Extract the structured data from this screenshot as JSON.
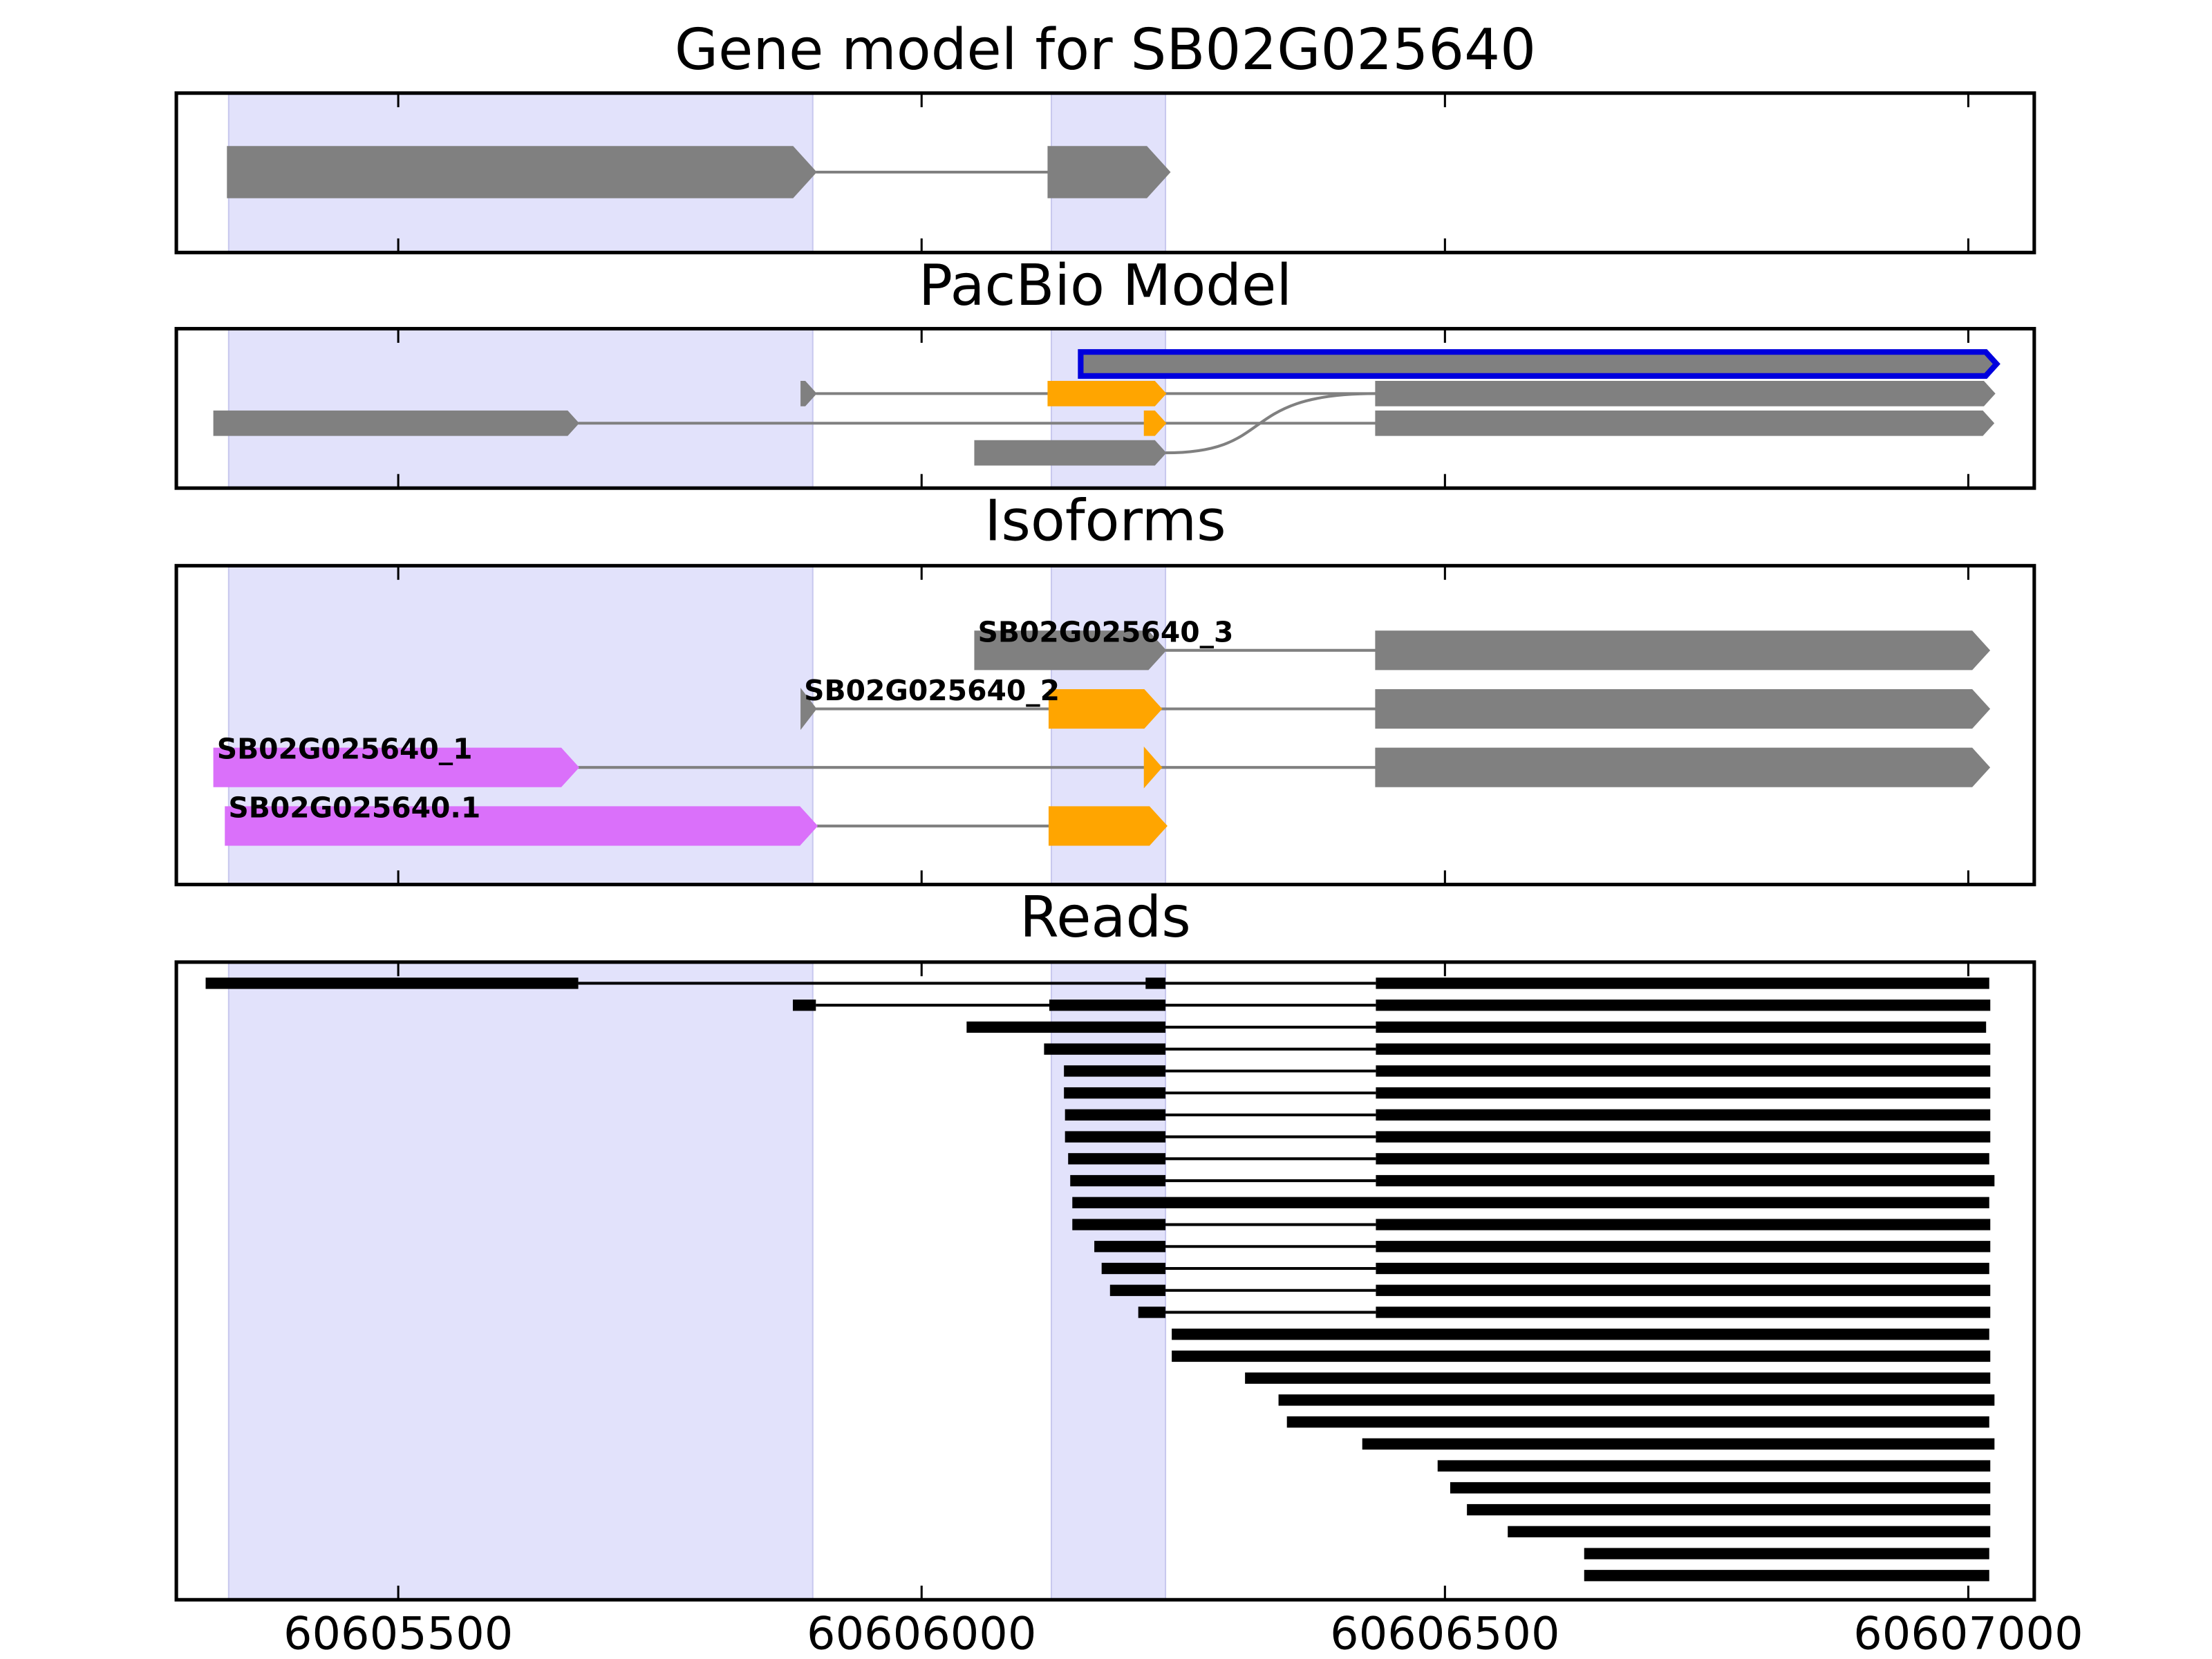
{
  "chart_data": {
    "type": "track",
    "xlim": [
      60605288,
      60607063
    ],
    "xticks": [
      60605500,
      60606000,
      60606500,
      60607000
    ],
    "highlights": [
      [
        60605338,
        60605896
      ],
      [
        60606124,
        60606233
      ]
    ],
    "highlight_color": "#e2e2fb",
    "panels": [
      {
        "title": "Gene model for SB02G025640",
        "style": "arrow",
        "intron_color": "#808080",
        "tracks": [
          {
            "exons": [
              {
                "start": 60605337,
                "end": 60605899,
                "color": "#808080"
              },
              {
                "start": 60606121,
                "end": 60606237,
                "color": "#808080"
              }
            ]
          }
        ]
      },
      {
        "title": "PacBio Model",
        "style": "arrow",
        "intron_color": "#808080",
        "tracks": [
          {
            "outline": "#0000dd",
            "exons": [
              {
                "start": 60606152,
                "end": 60607027,
                "color": "#808080"
              }
            ]
          },
          {
            "exons": [
              {
                "start": 60605885,
                "end": 60605899,
                "color": "#808080"
              },
              {
                "start": 60606121,
                "end": 60606233,
                "color": "#ffa500"
              },
              {
                "start": 60606434,
                "end": 60607025,
                "color": "#808080"
              }
            ]
          },
          {
            "exons": [
              {
                "start": 60605324,
                "end": 60605672,
                "color": "#808080"
              },
              {
                "start": 60606213,
                "end": 60606233,
                "color": "#ffa500"
              },
              {
                "start": 60606434,
                "end": 60607024,
                "color": "#808080"
              }
            ]
          },
          {
            "exons": [
              {
                "start": 60606051,
                "end": 60606233,
                "color": "#808080"
              }
            ]
          }
        ]
      },
      {
        "title": "Isoforms",
        "style": "arrow",
        "intron_color": "#808080",
        "tracks": [
          {
            "label": "SB02G025640_3",
            "exons": [
              {
                "start": 60606051,
                "end": 60606233,
                "color": "#808080"
              },
              {
                "start": 60606434,
                "end": 60607020,
                "color": "#808080"
              }
            ]
          },
          {
            "label": "SB02G025640_2",
            "exons": [
              {
                "start": 60605885,
                "end": 60605899,
                "color": "#808080"
              },
              {
                "start": 60606122,
                "end": 60606229,
                "color": "#ffa500"
              },
              {
                "start": 60606434,
                "end": 60607020,
                "color": "#808080"
              }
            ]
          },
          {
            "label": "SB02G025640_1",
            "exons": [
              {
                "start": 60605324,
                "end": 60605672,
                "color": "#da70fa"
              },
              {
                "start": 60606213,
                "end": 60606229,
                "color": "#ffa500"
              },
              {
                "start": 60606434,
                "end": 60607020,
                "color": "#808080"
              }
            ]
          },
          {
            "label": "SB02G025640.1",
            "exons": [
              {
                "start": 60605335,
                "end": 60605900,
                "color": "#da70fa"
              },
              {
                "start": 60606122,
                "end": 60606234,
                "color": "#ffa500"
              }
            ]
          }
        ]
      },
      {
        "title": "Reads",
        "style": "bar",
        "intron_color": "#000000",
        "tracks": [
          {
            "exons": [
              {
                "start": 60605316,
                "end": 60605672,
                "color": "#000000"
              },
              {
                "start": 60606214,
                "end": 60606233,
                "color": "#000000"
              },
              {
                "start": 60606434,
                "end": 60607020,
                "color": "#000000"
              }
            ]
          },
          {
            "exons": [
              {
                "start": 60605877,
                "end": 60605899,
                "color": "#000000"
              },
              {
                "start": 60606122,
                "end": 60606233,
                "color": "#000000"
              },
              {
                "start": 60606434,
                "end": 60607021,
                "color": "#000000"
              }
            ]
          },
          {
            "exons": [
              {
                "start": 60606043,
                "end": 60606233,
                "color": "#000000"
              },
              {
                "start": 60606434,
                "end": 60607017,
                "color": "#000000"
              }
            ]
          },
          {
            "exons": [
              {
                "start": 60606117,
                "end": 60606233,
                "color": "#000000"
              },
              {
                "start": 60606434,
                "end": 60607021,
                "color": "#000000"
              }
            ]
          },
          {
            "exons": [
              {
                "start": 60606136,
                "end": 60606233,
                "color": "#000000"
              },
              {
                "start": 60606434,
                "end": 60607021,
                "color": "#000000"
              }
            ]
          },
          {
            "exons": [
              {
                "start": 60606136,
                "end": 60606233,
                "color": "#000000"
              },
              {
                "start": 60606434,
                "end": 60607021,
                "color": "#000000"
              }
            ]
          },
          {
            "exons": [
              {
                "start": 60606137,
                "end": 60606233,
                "color": "#000000"
              },
              {
                "start": 60606434,
                "end": 60607021,
                "color": "#000000"
              }
            ]
          },
          {
            "exons": [
              {
                "start": 60606137,
                "end": 60606233,
                "color": "#000000"
              },
              {
                "start": 60606434,
                "end": 60607021,
                "color": "#000000"
              }
            ]
          },
          {
            "exons": [
              {
                "start": 60606140,
                "end": 60606233,
                "color": "#000000"
              },
              {
                "start": 60606434,
                "end": 60607020,
                "color": "#000000"
              }
            ]
          },
          {
            "exons": [
              {
                "start": 60606142,
                "end": 60606233,
                "color": "#000000"
              },
              {
                "start": 60606434,
                "end": 60607025,
                "color": "#000000"
              }
            ]
          },
          {
            "exons": [
              {
                "start": 60606144,
                "end": 60607020,
                "color": "#000000"
              }
            ]
          },
          {
            "exons": [
              {
                "start": 60606144,
                "end": 60606233,
                "color": "#000000"
              },
              {
                "start": 60606434,
                "end": 60607021,
                "color": "#000000"
              }
            ]
          },
          {
            "exons": [
              {
                "start": 60606165,
                "end": 60606233,
                "color": "#000000"
              },
              {
                "start": 60606434,
                "end": 60607021,
                "color": "#000000"
              }
            ]
          },
          {
            "exons": [
              {
                "start": 60606172,
                "end": 60606233,
                "color": "#000000"
              },
              {
                "start": 60606434,
                "end": 60607020,
                "color": "#000000"
              }
            ]
          },
          {
            "exons": [
              {
                "start": 60606180,
                "end": 60606233,
                "color": "#000000"
              },
              {
                "start": 60606434,
                "end": 60607021,
                "color": "#000000"
              }
            ]
          },
          {
            "exons": [
              {
                "start": 60606207,
                "end": 60606233,
                "color": "#000000"
              },
              {
                "start": 60606434,
                "end": 60607021,
                "color": "#000000"
              }
            ]
          },
          {
            "exons": [
              {
                "start": 60606239,
                "end": 60607020,
                "color": "#000000"
              }
            ]
          },
          {
            "exons": [
              {
                "start": 60606239,
                "end": 60607021,
                "color": "#000000"
              }
            ]
          },
          {
            "exons": [
              {
                "start": 60606309,
                "end": 60607021,
                "color": "#000000"
              }
            ]
          },
          {
            "exons": [
              {
                "start": 60606341,
                "end": 60607025,
                "color": "#000000"
              }
            ]
          },
          {
            "exons": [
              {
                "start": 60606349,
                "end": 60607020,
                "color": "#000000"
              }
            ]
          },
          {
            "exons": [
              {
                "start": 60606421,
                "end": 60607025,
                "color": "#000000"
              }
            ]
          },
          {
            "exons": [
              {
                "start": 60606493,
                "end": 60607021,
                "color": "#000000"
              }
            ]
          },
          {
            "exons": [
              {
                "start": 60606505,
                "end": 60607021,
                "color": "#000000"
              }
            ]
          },
          {
            "exons": [
              {
                "start": 60606521,
                "end": 60607021,
                "color": "#000000"
              }
            ]
          },
          {
            "exons": [
              {
                "start": 60606560,
                "end": 60607021,
                "color": "#000000"
              }
            ]
          },
          {
            "exons": [
              {
                "start": 60606633,
                "end": 60607020,
                "color": "#000000"
              }
            ]
          },
          {
            "exons": [
              {
                "start": 60606633,
                "end": 60607020,
                "color": "#000000"
              }
            ]
          }
        ]
      }
    ]
  }
}
